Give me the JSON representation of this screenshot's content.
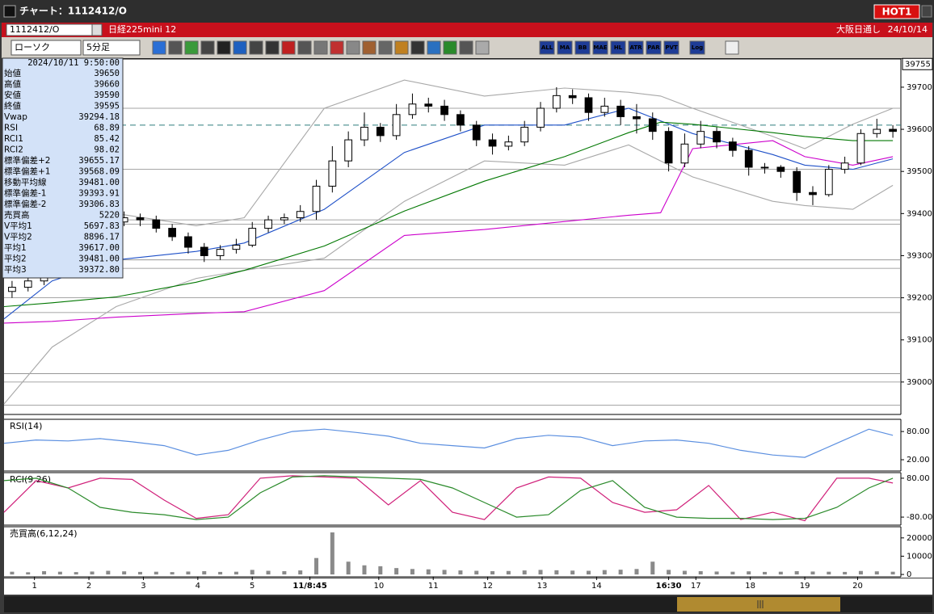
{
  "window": {
    "title": "チャート：1112412/O",
    "hot": "HOT1",
    "symbol": "1112412/O",
    "instrument": "日経225mini 12",
    "market": "大阪日通し",
    "date": "24/10/14"
  },
  "toolbar": {
    "chart_type": "ローソク",
    "timeframe": "5分足",
    "buttons": [
      "ALL",
      "MA",
      "BB",
      "MAE",
      "HL",
      "ATR",
      "PAR",
      "PVT",
      "Log"
    ]
  },
  "info_panel": {
    "timestamp": "2024/10/11  9:50:00",
    "rows": [
      {
        "label": "始値",
        "value": "39650",
        "color": "#000000"
      },
      {
        "label": "高値",
        "value": "39660",
        "color": "#000000"
      },
      {
        "label": "安値",
        "value": "39590",
        "color": "#000000"
      },
      {
        "label": "終値",
        "value": "39595",
        "color": "#000000"
      },
      {
        "label": "Vwap",
        "value": "39294.18",
        "color": "#cc00cc"
      },
      {
        "label": "RSI",
        "value": "68.89",
        "color": "#6495ed"
      },
      {
        "label": "RCI1",
        "value": "85.42",
        "color": "#cc0033"
      },
      {
        "label": "RCI2",
        "value": "98.02",
        "color": "#007700"
      },
      {
        "label": "標準偏差+2",
        "value": "39655.17",
        "color": "#999999"
      },
      {
        "label": "標準偏差+1",
        "value": "39568.09",
        "color": "#999999"
      },
      {
        "label": "移動平均線",
        "value": "39481.00",
        "color": "#000088"
      },
      {
        "label": "標準偏差-1",
        "value": "39393.91",
        "color": "#999999"
      },
      {
        "label": "標準偏差-2",
        "value": "39306.83",
        "color": "#999999"
      },
      {
        "label": "売買高",
        "value": "5220",
        "color": "#000000"
      },
      {
        "label": "V平均1",
        "value": "5697.83",
        "color": "#cc0000"
      },
      {
        "label": "V平均2",
        "value": "8896.17",
        "color": "#9933cc"
      },
      {
        "label": "平均1",
        "value": "39617.00",
        "color": "#cc0000"
      },
      {
        "label": "平均2",
        "value": "39481.00",
        "color": "#1e50c8"
      },
      {
        "label": "平均3",
        "value": "39372.80",
        "color": "#007700"
      }
    ]
  },
  "chart_data": [
    {
      "type": "candlestick",
      "xlim": [
        0,
        56
      ],
      "ylim": [
        38923,
        39767
      ],
      "yticks": [
        39700,
        39600,
        39500,
        39400,
        39300,
        39200,
        39100,
        39000
      ],
      "price_marker": 39755,
      "up_color": "#ffffff",
      "down_color": "#000000",
      "levels": [
        39650,
        39505,
        39385,
        39375,
        39290,
        39270,
        39200,
        39165,
        39020,
        39000,
        38945
      ],
      "dashed_level": 39610,
      "dashed_color": "#2e7d7d",
      "open": [
        39215,
        39225,
        39240,
        39265,
        39295,
        39325,
        39350,
        39380,
        39390,
        39385,
        39365,
        39345,
        39320,
        39300,
        39315,
        39325,
        39365,
        39385,
        39390,
        39405,
        39465,
        39525,
        39575,
        39605,
        39585,
        39635,
        39660,
        39655,
        39635,
        39610,
        39575,
        39560,
        39570,
        39605,
        39650,
        39680,
        39675,
        39640,
        39655,
        39630,
        39625,
        39595,
        39520,
        39565,
        39595,
        39570,
        39550,
        39510,
        39510,
        39500,
        39450,
        39445,
        39505,
        39520,
        39590,
        39600
      ],
      "high": [
        39240,
        39255,
        39280,
        39310,
        39340,
        39365,
        39400,
        39405,
        39400,
        39395,
        39375,
        39355,
        39330,
        39325,
        39340,
        39380,
        39395,
        39400,
        39420,
        39480,
        39560,
        39595,
        39640,
        39615,
        39660,
        39685,
        39675,
        39670,
        39645,
        39620,
        39590,
        39585,
        39620,
        39665,
        39700,
        39695,
        39685,
        39675,
        39670,
        39660,
        39640,
        39605,
        39590,
        39620,
        39605,
        39580,
        39560,
        39520,
        39515,
        39510,
        39465,
        39515,
        39535,
        39600,
        39625,
        39610
      ],
      "low": [
        39200,
        39215,
        39230,
        39255,
        39285,
        39315,
        39340,
        39370,
        39370,
        39355,
        39335,
        39305,
        39285,
        39290,
        39305,
        39320,
        39355,
        39375,
        39380,
        39385,
        39450,
        39510,
        39560,
        39570,
        39575,
        39625,
        39640,
        39620,
        39595,
        39560,
        39540,
        39550,
        39560,
        39595,
        39640,
        39660,
        39620,
        39630,
        39610,
        39590,
        39575,
        39500,
        39510,
        39555,
        39555,
        39535,
        39490,
        39495,
        39485,
        39430,
        39420,
        39440,
        39495,
        39515,
        39580,
        39580
      ],
      "close": [
        39225,
        39240,
        39265,
        39295,
        39325,
        39350,
        39380,
        39390,
        39385,
        39365,
        39345,
        39320,
        39300,
        39315,
        39325,
        39365,
        39385,
        39390,
        39405,
        39465,
        39525,
        39575,
        39605,
        39585,
        39635,
        39660,
        39655,
        39635,
        39610,
        39575,
        39560,
        39570,
        39605,
        39650,
        39680,
        39675,
        39640,
        39655,
        39630,
        39625,
        39595,
        39520,
        39565,
        39595,
        39570,
        39550,
        39510,
        39510,
        39500,
        39450,
        39445,
        39505,
        39520,
        39590,
        39600,
        39595
      ],
      "lines": {
        "x": [
          0,
          3,
          7,
          12,
          15,
          20,
          25,
          30,
          35,
          39,
          41,
          43,
          48,
          50,
          53,
          55.5
        ],
        "series": [
          {
            "color": "#a8a8a8",
            "values": [
              39275,
              39333,
              39400,
              39371,
              39390,
              39650,
              39717,
              39679,
              39698,
              39688,
              39679,
              39650,
              39583,
              39554,
              39612,
              39650
            ]
          },
          {
            "color": "#a8a8a8",
            "values": [
              38948,
              39083,
              39179,
              39246,
              39265,
              39294,
              39429,
              39525,
              39515,
              39563,
              39525,
              39487,
              39429,
              39419,
              39410,
              39467
            ]
          },
          {
            "color": "#1e50c8",
            "values": [
              39150,
              39240,
              39290,
              39310,
              39330,
              39410,
              39545,
              39610,
              39610,
              39650,
              39620,
              39590,
              39540,
              39515,
              39505,
              39530
            ]
          },
          {
            "color": "#007700",
            "values": [
              39179,
              39188,
              39202,
              39237,
              39265,
              39323,
              39406,
              39477,
              39535,
              39592,
              39617,
              39612,
              39592,
              39583,
              39573,
              39573
            ]
          },
          {
            "color": "#cc00cc",
            "values": [
              39140,
              39144,
              39154,
              39163,
              39167,
              39217,
              39348,
              39362,
              39381,
              39396,
              39402,
              39554,
              39573,
              39535,
              39515,
              39535
            ]
          }
        ]
      }
    },
    {
      "type": "line",
      "title": "RSI(14)",
      "xlim": [
        0,
        56
      ],
      "ylim": [
        -4,
        106
      ],
      "yticks": [
        {
          "value": 80,
          "label": "80.00"
        },
        {
          "value": 20,
          "label": "20.00"
        }
      ],
      "x": [
        0,
        2,
        4,
        6,
        8,
        10,
        12,
        14,
        16,
        18,
        20,
        22,
        24,
        26,
        28,
        30,
        32,
        34,
        36,
        38,
        40,
        42,
        44,
        46,
        48,
        50,
        52,
        54,
        55.5
      ],
      "series": [
        {
          "color": "#5b8fe0",
          "values": [
            55,
            62,
            60,
            65,
            58,
            50,
            30,
            40,
            62,
            80,
            85,
            78,
            70,
            55,
            50,
            45,
            65,
            72,
            68,
            50,
            60,
            62,
            55,
            40,
            30,
            25,
            55,
            85,
            72
          ]
        }
      ]
    },
    {
      "type": "line",
      "title": "RCI(9,26)",
      "xlim": [
        0,
        56
      ],
      "ylim": [
        -113,
        103
      ],
      "yticks": [
        {
          "value": 80,
          "label": "80.00"
        },
        {
          "value": -80,
          "label": "-80.00"
        }
      ],
      "x": [
        0,
        2,
        4,
        6,
        8,
        10,
        12,
        14,
        16,
        18,
        20,
        22,
        24,
        26,
        28,
        30,
        32,
        34,
        36,
        38,
        40,
        42,
        44,
        46,
        48,
        50,
        52,
        54,
        55.5
      ],
      "series": [
        {
          "color": "#d0207a",
          "values": [
            -60,
            70,
            40,
            80,
            75,
            -10,
            -85,
            -70,
            80,
            90,
            85,
            80,
            -30,
            70,
            -60,
            -90,
            40,
            85,
            80,
            -20,
            -60,
            -50,
            50,
            -90,
            -60,
            -95,
            80,
            80,
            60
          ]
        },
        {
          "color": "#2a8a2a",
          "values": [
            70,
            80,
            40,
            -40,
            -60,
            -70,
            -90,
            -80,
            20,
            85,
            90,
            85,
            80,
            75,
            40,
            -20,
            -80,
            -70,
            30,
            70,
            -40,
            -80,
            -85,
            -85,
            -90,
            -85,
            -40,
            40,
            80
          ]
        }
      ]
    },
    {
      "type": "bar",
      "title": "売買高(6,12,24)",
      "xlim": [
        0,
        56
      ],
      "ylim": [
        -1300,
        26100
      ],
      "yticks": [
        20000,
        10000,
        0
      ],
      "color": "#8a8a8a",
      "values": [
        1500,
        1200,
        1800,
        1500,
        1300,
        1600,
        2000,
        1700,
        1400,
        1500,
        1300,
        1600,
        1800,
        1400,
        1500,
        2500,
        2000,
        1800,
        2200,
        9000,
        23000,
        7000,
        5000,
        4500,
        3500,
        3000,
        2800,
        2500,
        2200,
        2000,
        1800,
        1900,
        2200,
        2500,
        2300,
        2100,
        2000,
        2400,
        2600,
        3000,
        7000,
        2500,
        2000,
        1800,
        1600,
        1500,
        1700,
        1400,
        1500,
        1800,
        1600,
        1500,
        1400,
        1900,
        1700,
        1500
      ],
      "xticks": [
        {
          "value": 1.9,
          "label": "1"
        },
        {
          "value": 5.3,
          "label": "2"
        },
        {
          "value": 8.7,
          "label": "3"
        },
        {
          "value": 12.1,
          "label": "4"
        },
        {
          "value": 15.5,
          "label": "5"
        },
        {
          "value": 19.1,
          "label": "11/8:45",
          "bold": true
        },
        {
          "value": 23.4,
          "label": "10"
        },
        {
          "value": 26.8,
          "label": "11"
        },
        {
          "value": 30.2,
          "label": "12"
        },
        {
          "value": 33.6,
          "label": "13"
        },
        {
          "value": 37.0,
          "label": "14"
        },
        {
          "value": 41.5,
          "label": "16:30",
          "bold": true
        },
        {
          "value": 43.2,
          "label": "17"
        },
        {
          "value": 46.6,
          "label": "18"
        },
        {
          "value": 50.0,
          "label": "19"
        },
        {
          "value": 53.3,
          "label": "20"
        }
      ]
    }
  ]
}
